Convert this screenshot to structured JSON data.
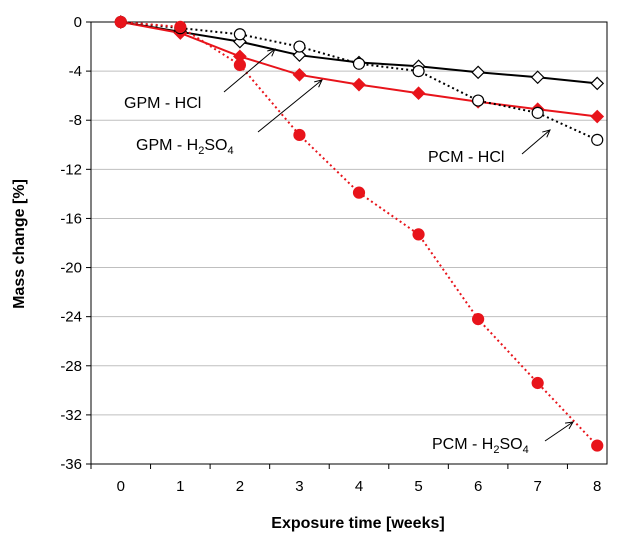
{
  "chart_data": {
    "type": "line",
    "title": "",
    "xlabel": "Exposure time [weeks]",
    "ylabel": "Mass change [%]",
    "x": [
      0,
      1,
      2,
      3,
      4,
      5,
      6,
      7,
      8
    ],
    "xlim": [
      -0.5,
      8.5
    ],
    "ylim": [
      -36,
      0
    ],
    "xticks": [
      "0",
      "1",
      "2",
      "3",
      "4",
      "5",
      "6",
      "7",
      "8"
    ],
    "yticks": [
      "0",
      "-4",
      "-8",
      "-12",
      "-16",
      "-20",
      "-24",
      "-28",
      "-32",
      "-36"
    ],
    "grid": true,
    "legend": "none",
    "series": [
      {
        "name": "GPM - HCl",
        "marker": "diamond-open",
        "line": "solid",
        "color": "#000000",
        "values": [
          0,
          -0.8,
          -1.6,
          -2.7,
          -3.3,
          -3.6,
          -4.1,
          -4.5,
          -5.0
        ]
      },
      {
        "name": "GPM - H2SO4",
        "marker": "diamond-filled",
        "line": "solid",
        "color": "#e8141b",
        "values": [
          0,
          -0.9,
          -2.8,
          -4.3,
          -5.1,
          -5.8,
          -6.5,
          -7.1,
          -7.7
        ]
      },
      {
        "name": "PCM - HCl",
        "marker": "circle-open",
        "line": "dotted",
        "color": "#000000",
        "values": [
          0,
          -0.5,
          -1.0,
          -2.0,
          -3.4,
          -4.0,
          -6.4,
          -7.4,
          -9.6
        ]
      },
      {
        "name": "PCM - H2SO4",
        "marker": "circle-filled",
        "line": "dotted",
        "color": "#e8141b",
        "values": [
          0,
          -0.4,
          -3.5,
          -9.2,
          -13.9,
          -17.3,
          -24.2,
          -29.4,
          -34.5
        ]
      }
    ],
    "annotations": [
      {
        "label_main": "GPM - HCl",
        "series": "GPM - HCl"
      },
      {
        "label_main": "GPM - H",
        "sub1": "2",
        "mid": "SO",
        "sub2": "4",
        "series": "GPM - H2SO4"
      },
      {
        "label_main": "PCM - HCl",
        "series": "PCM - HCl"
      },
      {
        "label_main": "PCM - H",
        "sub1": "2",
        "mid": "SO",
        "sub2": "4",
        "series": "PCM - H2SO4"
      }
    ]
  }
}
